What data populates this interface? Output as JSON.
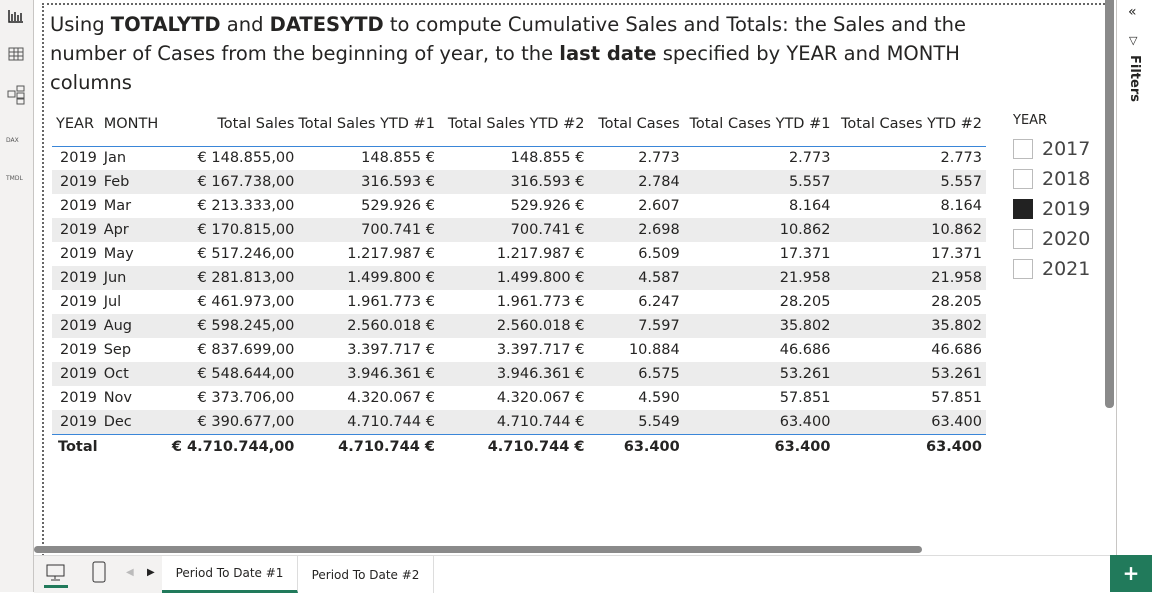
{
  "title": {
    "p1": "Using ",
    "b1": "TOTALYTD",
    "p2": " and ",
    "b2": "DATESYTD",
    "p3": " to compute Cumulative Sales and Totals: the Sales  and the number of Cases from the beginning of year, to the ",
    "b3": "last date",
    "p4": " specified by YEAR and MONTH columns"
  },
  "table": {
    "headers": [
      "YEAR",
      "MONTH",
      "Total Sales",
      "Total Sales YTD #1",
      "Total Sales YTD #2",
      "Total Cases",
      "Total Cases YTD #1",
      "Total Cases YTD #2"
    ],
    "rows": [
      [
        "2019",
        "Jan",
        "€ 148.855,00",
        "148.855 €",
        "148.855 €",
        "2.773",
        "2.773",
        "2.773"
      ],
      [
        "2019",
        "Feb",
        "€ 167.738,00",
        "316.593 €",
        "316.593 €",
        "2.784",
        "5.557",
        "5.557"
      ],
      [
        "2019",
        "Mar",
        "€ 213.333,00",
        "529.926 €",
        "529.926 €",
        "2.607",
        "8.164",
        "8.164"
      ],
      [
        "2019",
        "Apr",
        "€ 170.815,00",
        "700.741 €",
        "700.741 €",
        "2.698",
        "10.862",
        "10.862"
      ],
      [
        "2019",
        "May",
        "€ 517.246,00",
        "1.217.987 €",
        "1.217.987 €",
        "6.509",
        "17.371",
        "17.371"
      ],
      [
        "2019",
        "Jun",
        "€ 281.813,00",
        "1.499.800 €",
        "1.499.800 €",
        "4.587",
        "21.958",
        "21.958"
      ],
      [
        "2019",
        "Jul",
        "€ 461.973,00",
        "1.961.773 €",
        "1.961.773 €",
        "6.247",
        "28.205",
        "28.205"
      ],
      [
        "2019",
        "Aug",
        "€ 598.245,00",
        "2.560.018 €",
        "2.560.018 €",
        "7.597",
        "35.802",
        "35.802"
      ],
      [
        "2019",
        "Sep",
        "€ 837.699,00",
        "3.397.717 €",
        "3.397.717 €",
        "10.884",
        "46.686",
        "46.686"
      ],
      [
        "2019",
        "Oct",
        "€ 548.644,00",
        "3.946.361 €",
        "3.946.361 €",
        "6.575",
        "53.261",
        "53.261"
      ],
      [
        "2019",
        "Nov",
        "€ 373.706,00",
        "4.320.067 €",
        "4.320.067 €",
        "4.590",
        "57.851",
        "57.851"
      ],
      [
        "2019",
        "Dec",
        "€ 390.677,00",
        "4.710.744 €",
        "4.710.744 €",
        "5.549",
        "63.400",
        "63.400"
      ]
    ],
    "total": [
      "Total",
      "€ 4.710.744,00",
      "4.710.744 €",
      "4.710.744 €",
      "63.400",
      "63.400",
      "63.400"
    ]
  },
  "slicer": {
    "title": "YEAR",
    "items": [
      {
        "label": "2017",
        "checked": false
      },
      {
        "label": "2018",
        "checked": false
      },
      {
        "label": "2019",
        "checked": true
      },
      {
        "label": "2020",
        "checked": false
      },
      {
        "label": "2021",
        "checked": false
      }
    ]
  },
  "filters": {
    "label": "Filters"
  },
  "rail": {
    "dax": "DAX",
    "tmdl": "TMDL"
  },
  "tabs": [
    {
      "label": "Period To Date #1",
      "active": true
    },
    {
      "label": "Period To Date #2",
      "active": false
    }
  ],
  "plus": "+",
  "accent": "#217a5b"
}
